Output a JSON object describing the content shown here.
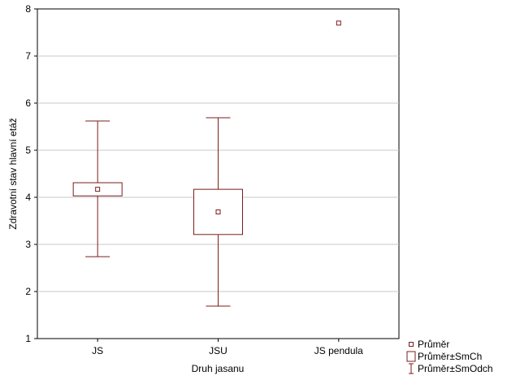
{
  "chart_data": {
    "type": "boxplot",
    "title": "",
    "xlabel": "Druh jasanu",
    "ylabel": "Zdravotní stav hlavní etáž",
    "ylim": [
      1,
      8
    ],
    "yticks": [
      1,
      2,
      3,
      4,
      5,
      6,
      7,
      8
    ],
    "grid": "horizontal",
    "legend_position": "bottom-right",
    "categories": [
      "JS",
      "JSU",
      "JS pendula"
    ],
    "series": [
      {
        "name": "JS",
        "mean": 4.17,
        "se_low": 4.03,
        "se_high": 4.31,
        "sd_low": 2.74,
        "sd_high": 5.62
      },
      {
        "name": "JSU",
        "mean": 3.69,
        "se_low": 3.21,
        "se_high": 4.17,
        "sd_low": 1.69,
        "sd_high": 5.69
      },
      {
        "name": "JS pendula",
        "mean": 7.7,
        "se_low": null,
        "se_high": null,
        "sd_low": null,
        "sd_high": null
      }
    ],
    "legend": [
      {
        "label": "Průměr",
        "symbol": "mean"
      },
      {
        "label": "Průměr±SmCh",
        "symbol": "box"
      },
      {
        "label": "Průměr±SmOdch",
        "symbol": "whisker"
      }
    ],
    "colors": {
      "series": "#7b1c1c",
      "grid": "#c8c8c8",
      "axis": "#000000"
    }
  }
}
